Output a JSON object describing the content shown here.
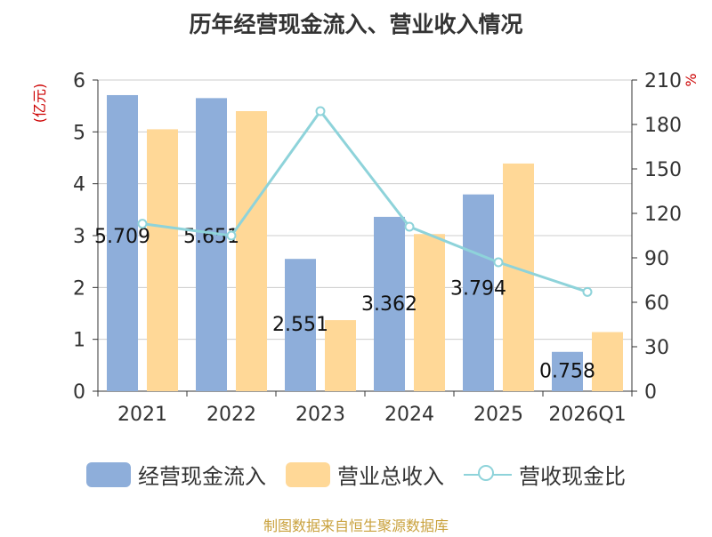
{
  "title": "历年经营现金流入、营业收入情况",
  "source": "制图数据来自恒生聚源数据库",
  "legend": {
    "series1": "经营现金流入",
    "series2": "营业总收入",
    "series3": "营收现金比"
  },
  "colors": {
    "cash": "#8EAEDA",
    "revenue": "#FFD897",
    "ratio": "#8ED3DA",
    "unit_red": "#CC0000"
  },
  "chart_data": {
    "type": "bar",
    "categories": [
      "2021",
      "2022",
      "2023",
      "2024",
      "2025",
      "2026Q1"
    ],
    "series": [
      {
        "name": "经营现金流入",
        "axis": "left",
        "values": [
          5.709,
          5.651,
          2.551,
          3.362,
          3.794,
          0.758
        ]
      },
      {
        "name": "营业总收入",
        "axis": "left",
        "values": [
          5.05,
          5.4,
          1.37,
          3.03,
          4.39,
          1.14
        ]
      },
      {
        "name": "营收现金比",
        "axis": "right",
        "type": "line",
        "values": [
          113,
          105,
          189,
          111,
          87,
          67
        ]
      }
    ],
    "data_labels": [
      "5.709",
      "5.651",
      "2.551",
      "3.362",
      "3.794",
      "0.758"
    ],
    "left_axis": {
      "label": "(亿元)",
      "ylim": [
        0,
        6
      ],
      "ticks": [
        "0",
        "1",
        "2",
        "3",
        "4",
        "5",
        "6"
      ]
    },
    "right_axis": {
      "label": "%",
      "ylim": [
        0,
        210
      ],
      "ticks": [
        "0",
        "30",
        "60",
        "90",
        "120",
        "150",
        "180",
        "210"
      ]
    },
    "grid": true,
    "legend_position": "bottom"
  }
}
